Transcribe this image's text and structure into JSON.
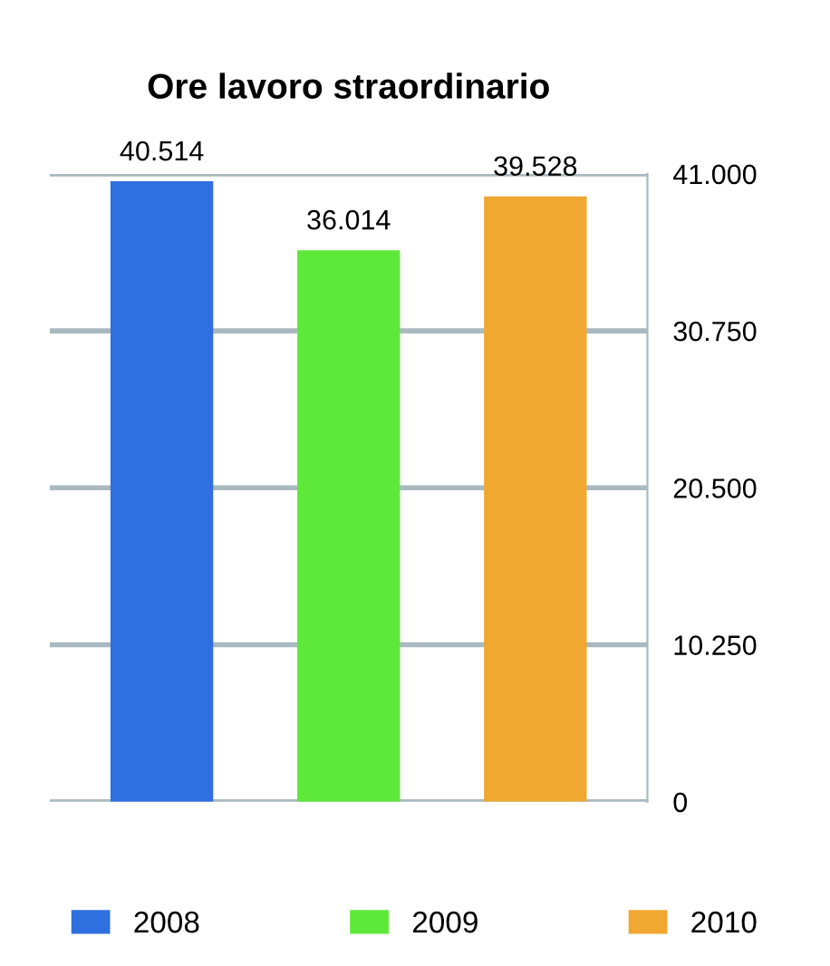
{
  "chart_data": {
    "type": "bar",
    "title": "Ore lavoro straordinario",
    "categories": [
      null,
      null,
      null
    ],
    "series": [
      {
        "name": "2008",
        "color": "#2f6fe0",
        "values": [
          40514,
          null,
          null
        ],
        "value_labels": [
          "40.514",
          null,
          null
        ]
      },
      {
        "name": "2009",
        "color": "#5ee83a",
        "values": [
          null,
          36014,
          null
        ],
        "value_labels": [
          null,
          "36.014",
          null
        ]
      },
      {
        "name": "2010",
        "color": "#f0a830",
        "values": [
          null,
          null,
          39528
        ],
        "value_labels": [
          null,
          null,
          "39.528"
        ]
      }
    ],
    "ylim": [
      0,
      41000
    ],
    "yticks": [
      {
        "value": 0,
        "label": "0"
      },
      {
        "value": 10250,
        "label": "10.250"
      },
      {
        "value": 20500,
        "label": "20.500"
      },
      {
        "value": 30750,
        "label": "30.750"
      },
      {
        "value": 41000,
        "label": "41.000"
      }
    ],
    "grid": "y",
    "legend": "bottom"
  }
}
